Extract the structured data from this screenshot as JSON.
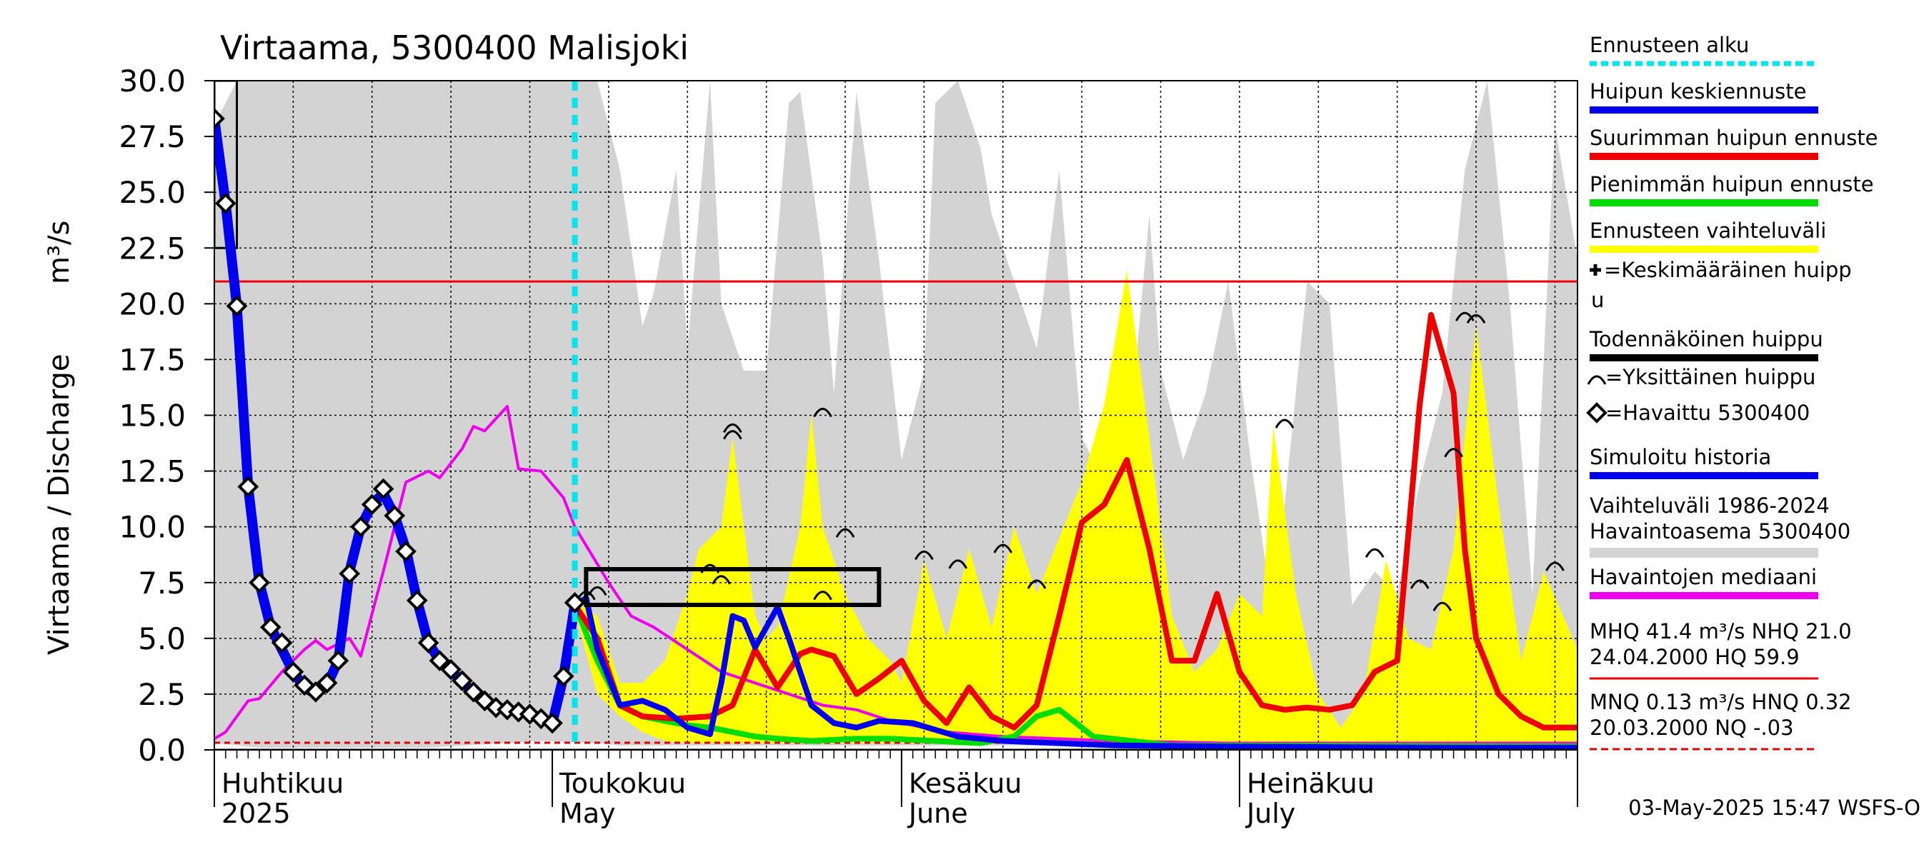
{
  "chart_data": {
    "type": "line",
    "title": "Virtaama, 5300400 Malisjoki",
    "ylabel": "Virtaama / Discharge",
    "yunit": "m³/s",
    "ylim": [
      0,
      30
    ],
    "yticks": [
      "0.0",
      "2.5",
      "5.0",
      "7.5",
      "10.0",
      "12.5",
      "15.0",
      "17.5",
      "20.0",
      "22.5",
      "25.0",
      "27.5",
      "30.0"
    ],
    "xlim": [
      "2025-04-01",
      "2025-07-31"
    ],
    "months": [
      {
        "fi": "Huhtikuu",
        "en": "2025",
        "start": "2025-04-01"
      },
      {
        "fi": "Toukokuu",
        "en": "May",
        "start": "2025-05-01"
      },
      {
        "fi": "Kesäkuu",
        "en": "June",
        "start": "2025-06-01"
      },
      {
        "fi": "Heinäkuu",
        "en": "July",
        "start": "2025-07-01"
      }
    ],
    "forecast_start": "2025-05-03",
    "hq_line": 21.0,
    "nq_line": 0.32,
    "range_1986_2024": {
      "x": [
        "2025-04-01",
        "2025-04-03",
        "2025-04-05",
        "2025-04-10",
        "2025-04-20",
        "2025-04-30",
        "2025-05-05",
        "2025-05-07",
        "2025-05-09",
        "2025-05-10",
        "2025-05-12",
        "2025-05-13",
        "2025-05-15",
        "2025-05-16",
        "2025-05-18",
        "2025-05-20",
        "2025-05-22",
        "2025-05-23",
        "2025-05-25",
        "2025-05-26",
        "2025-05-28",
        "2025-05-30",
        "2025-06-01",
        "2025-06-03",
        "2025-06-04",
        "2025-06-06",
        "2025-06-08",
        "2025-06-09",
        "2025-06-11",
        "2025-06-13",
        "2025-06-15",
        "2025-06-17",
        "2025-06-19",
        "2025-06-21",
        "2025-06-23",
        "2025-06-24",
        "2025-06-26",
        "2025-06-28",
        "2025-06-30",
        "2025-07-02",
        "2025-07-04",
        "2025-07-05",
        "2025-07-07",
        "2025-07-09",
        "2025-07-11",
        "2025-07-13",
        "2025-07-15",
        "2025-07-17",
        "2025-07-19",
        "2025-07-21",
        "2025-07-23",
        "2025-07-25",
        "2025-07-27",
        "2025-07-29",
        "2025-07-31"
      ],
      "upper": [
        28.0,
        30.0,
        30.0,
        30.0,
        30.0,
        30.0,
        30.0,
        26.0,
        19.0,
        20.5,
        26.0,
        18.0,
        30.0,
        20.0,
        17.0,
        17.0,
        29.0,
        29.5,
        22.0,
        16.0,
        29.5,
        22.0,
        13.0,
        17.0,
        29.0,
        30.0,
        27.0,
        24.0,
        21.0,
        18.0,
        26.0,
        14.0,
        12.0,
        13.0,
        24.0,
        17.0,
        13.0,
        16.0,
        21.0,
        13.0,
        6.0,
        11.0,
        21.0,
        20.0,
        6.5,
        8.0,
        7.0,
        12.0,
        16.0,
        26.0,
        30.0,
        20.0,
        7.0,
        28.0,
        22.0
      ],
      "lower": [
        0.3,
        0.2,
        0.1,
        0.1,
        0.1,
        0.4,
        0.3,
        0.2,
        0.2,
        0.2,
        0.2,
        0.2,
        0.2,
        0.2,
        0.2,
        0.2,
        0.2,
        0.2,
        0.2,
        0.2,
        0.2,
        0.2,
        0.2,
        0.2,
        0.2,
        0.2,
        0.2,
        0.2,
        0.2,
        0.2,
        0.2,
        0.2,
        0.2,
        0.2,
        0.2,
        0.2,
        0.2,
        0.2,
        0.2,
        0.2,
        0.2,
        0.2,
        0.2,
        0.2,
        0.2,
        0.2,
        0.2,
        0.2,
        0.2,
        0.2,
        0.2,
        0.2,
        0.2,
        0.2,
        0.2
      ]
    },
    "forecast_range": {
      "x": [
        "2025-05-03",
        "2025-05-05",
        "2025-05-07",
        "2025-05-09",
        "2025-05-11",
        "2025-05-13",
        "2025-05-14",
        "2025-05-16",
        "2025-05-17",
        "2025-05-19",
        "2025-05-20",
        "2025-05-21",
        "2025-05-23",
        "2025-05-24",
        "2025-05-25",
        "2025-05-27",
        "2025-05-29",
        "2025-05-31",
        "2025-06-01",
        "2025-06-03",
        "2025-06-05",
        "2025-06-07",
        "2025-06-09",
        "2025-06-11",
        "2025-06-13",
        "2025-06-15",
        "2025-06-17",
        "2025-06-19",
        "2025-06-21",
        "2025-06-23",
        "2025-06-25",
        "2025-06-27",
        "2025-06-29",
        "2025-07-01",
        "2025-07-03",
        "2025-07-04",
        "2025-07-06",
        "2025-07-08",
        "2025-07-10",
        "2025-07-12",
        "2025-07-14",
        "2025-07-16",
        "2025-07-18",
        "2025-07-20",
        "2025-07-22",
        "2025-07-24",
        "2025-07-26",
        "2025-07-28",
        "2025-07-31"
      ],
      "upper": [
        6.8,
        6.0,
        3.0,
        3.0,
        4.0,
        7.0,
        9.0,
        10.0,
        14.0,
        6.0,
        5.0,
        5.5,
        10.0,
        15.0,
        10.0,
        7.0,
        5.0,
        4.0,
        3.0,
        8.5,
        5.0,
        9.0,
        5.5,
        10.0,
        7.0,
        9.5,
        12.0,
        15.5,
        21.5,
        14.0,
        6.0,
        3.5,
        4.5,
        7.0,
        6.0,
        14.5,
        7.0,
        2.5,
        1.0,
        2.5,
        8.5,
        5.0,
        4.5,
        9.0,
        19.0,
        11.0,
        4.0,
        8.0,
        4.5
      ],
      "lower": [
        6.2,
        2.5,
        1.5,
        0.8,
        0.4,
        0.3,
        0.3,
        0.3,
        0.3,
        0.3,
        0.3,
        0.3,
        0.3,
        0.3,
        0.3,
        0.3,
        0.3,
        0.3,
        0.3,
        0.3,
        0.3,
        0.3,
        0.3,
        0.3,
        0.3,
        0.3,
        0.3,
        0.3,
        0.3,
        0.3,
        0.3,
        0.3,
        0.3,
        0.3,
        0.3,
        0.3,
        0.3,
        0.3,
        0.3,
        0.3,
        0.3,
        0.3,
        0.3,
        0.3,
        0.3,
        0.3,
        0.3,
        0.3,
        0.3
      ]
    },
    "series": [
      {
        "name": "Havaintojen mediaani",
        "color": "#ee00ee",
        "width": 4,
        "x": [
          "2025-04-01",
          "2025-04-02",
          "2025-04-04",
          "2025-04-05",
          "2025-04-07",
          "2025-04-09",
          "2025-04-10",
          "2025-04-11",
          "2025-04-13",
          "2025-04-14",
          "2025-04-16",
          "2025-04-18",
          "2025-04-20",
          "2025-04-21",
          "2025-04-23",
          "2025-04-24",
          "2025-04-25",
          "2025-04-27",
          "2025-04-28",
          "2025-04-30",
          "2025-05-02",
          "2025-05-03",
          "2025-05-06",
          "2025-05-08",
          "2025-05-10",
          "2025-05-13",
          "2025-05-16",
          "2025-05-19",
          "2025-05-22",
          "2025-05-25",
          "2025-05-28",
          "2025-05-31",
          "2025-06-05",
          "2025-06-10",
          "2025-06-20",
          "2025-06-30",
          "2025-07-10",
          "2025-07-20",
          "2025-07-31"
        ],
        "y": [
          0.5,
          0.8,
          2.2,
          2.3,
          3.5,
          4.5,
          4.9,
          4.5,
          5.0,
          4.2,
          8.0,
          12.0,
          12.5,
          12.2,
          13.5,
          14.5,
          14.3,
          15.4,
          12.6,
          12.5,
          11.3,
          10.0,
          7.5,
          6.0,
          5.5,
          4.5,
          3.5,
          3.0,
          2.5,
          2.0,
          1.8,
          1.3,
          0.8,
          0.6,
          0.4,
          0.3,
          0.3,
          0.3,
          0.3
        ]
      },
      {
        "name": "Pienimmän huipun ennuste",
        "color": "#00dd00",
        "width": 8,
        "x": [
          "2025-05-03",
          "2025-05-05",
          "2025-05-07",
          "2025-05-09",
          "2025-05-11",
          "2025-05-13",
          "2025-05-15",
          "2025-05-17",
          "2025-05-19",
          "2025-05-21",
          "2025-05-24",
          "2025-05-28",
          "2025-05-31",
          "2025-06-04",
          "2025-06-08",
          "2025-06-11",
          "2025-06-13",
          "2025-06-15",
          "2025-06-18",
          "2025-06-25",
          "2025-07-31"
        ],
        "y": [
          6.5,
          4.0,
          2.0,
          1.5,
          1.3,
          1.1,
          1.0,
          0.8,
          0.6,
          0.5,
          0.4,
          0.5,
          0.5,
          0.4,
          0.3,
          0.6,
          1.5,
          1.8,
          0.6,
          0.2,
          0.15
        ]
      },
      {
        "name": "Suurimman huipun ennuste",
        "color": "#ee0000",
        "width": 8,
        "x": [
          "2025-05-03",
          "2025-05-05",
          "2025-05-07",
          "2025-05-09",
          "2025-05-12",
          "2025-05-15",
          "2025-05-17",
          "2025-05-19",
          "2025-05-21",
          "2025-05-23",
          "2025-05-24",
          "2025-05-26",
          "2025-05-28",
          "2025-05-30",
          "2025-06-01",
          "2025-06-03",
          "2025-06-05",
          "2025-06-07",
          "2025-06-09",
          "2025-06-11",
          "2025-06-13",
          "2025-06-15",
          "2025-06-17",
          "2025-06-19",
          "2025-06-21",
          "2025-06-23",
          "2025-06-25",
          "2025-06-27",
          "2025-06-29",
          "2025-07-01",
          "2025-07-03",
          "2025-07-05",
          "2025-07-07",
          "2025-07-09",
          "2025-07-11",
          "2025-07-13",
          "2025-07-15",
          "2025-07-17",
          "2025-07-18",
          "2025-07-20",
          "2025-07-21",
          "2025-07-22",
          "2025-07-24",
          "2025-07-26",
          "2025-07-28",
          "2025-07-31"
        ],
        "y": [
          6.5,
          5.0,
          2.0,
          1.5,
          1.4,
          1.5,
          2.0,
          4.5,
          2.8,
          4.3,
          4.5,
          4.2,
          2.5,
          3.2,
          4.0,
          2.2,
          1.2,
          2.8,
          1.5,
          1.0,
          2.0,
          6.0,
          10.2,
          11.0,
          13.0,
          9.0,
          4.0,
          4.0,
          7.0,
          3.5,
          2.0,
          1.8,
          1.9,
          1.8,
          2.0,
          3.5,
          4.0,
          15.5,
          19.5,
          16.0,
          9.0,
          5.0,
          2.5,
          1.5,
          1.0,
          1.0
        ]
      },
      {
        "name": "Huipun keskiennuste",
        "color": "#0000ee",
        "width": 8,
        "x": [
          "2025-05-03",
          "2025-05-04",
          "2025-05-05",
          "2025-05-07",
          "2025-05-09",
          "2025-05-11",
          "2025-05-13",
          "2025-05-15",
          "2025-05-16",
          "2025-05-17",
          "2025-05-18",
          "2025-05-19",
          "2025-05-20",
          "2025-05-21",
          "2025-05-22",
          "2025-05-24",
          "2025-05-26",
          "2025-05-28",
          "2025-05-30",
          "2025-06-02",
          "2025-06-06",
          "2025-06-10",
          "2025-06-15",
          "2025-06-20",
          "2025-06-30",
          "2025-07-10",
          "2025-07-20",
          "2025-07-31"
        ],
        "y": [
          6.5,
          6.8,
          4.5,
          2.0,
          2.2,
          1.8,
          1.0,
          0.7,
          3.0,
          6.0,
          5.8,
          4.6,
          5.5,
          6.4,
          5.0,
          2.0,
          1.2,
          1.0,
          1.3,
          1.2,
          0.6,
          0.4,
          0.3,
          0.2,
          0.15,
          0.12,
          0.1,
          0.1
        ]
      },
      {
        "name": "Simuloitu historia",
        "color": "#0000ee",
        "width": 14,
        "x": [
          "2025-04-01",
          "2025-04-02",
          "2025-04-03",
          "2025-04-04",
          "2025-04-05",
          "2025-04-06",
          "2025-04-07",
          "2025-04-08",
          "2025-04-09",
          "2025-04-10",
          "2025-04-11",
          "2025-04-12",
          "2025-04-13",
          "2025-04-14",
          "2025-04-15",
          "2025-04-16",
          "2025-04-17",
          "2025-04-18",
          "2025-04-19",
          "2025-04-20",
          "2025-04-21",
          "2025-04-22",
          "2025-04-23",
          "2025-04-24",
          "2025-04-25",
          "2025-04-26",
          "2025-04-27",
          "2025-04-28",
          "2025-04-29",
          "2025-04-30",
          "2025-05-01",
          "2025-05-02",
          "2025-05-03"
        ],
        "y": [
          28.3,
          24.5,
          19.9,
          11.8,
          7.5,
          5.5,
          4.5,
          3.5,
          2.8,
          2.5,
          2.9,
          4.0,
          8.0,
          10.0,
          11.0,
          11.5,
          10.5,
          9.0,
          6.7,
          4.8,
          4.0,
          3.6,
          3.0,
          2.6,
          2.2,
          1.9,
          1.8,
          1.7,
          1.6,
          1.4,
          1.2,
          3.3,
          6.5
        ]
      },
      {
        "name": "Todennäköinen huippu",
        "color": "#000000",
        "width": 3,
        "x": [
          "2025-04-01",
          "2025-05-03",
          "2025-07-31"
        ],
        "y": [
          0.0,
          0.0,
          0.0
        ]
      }
    ],
    "observed": {
      "name": "Havaittu 5300400",
      "x": [
        "2025-04-01",
        "2025-04-02",
        "2025-04-03",
        "2025-04-04",
        "2025-04-05",
        "2025-04-06",
        "2025-04-07",
        "2025-04-08",
        "2025-04-09",
        "2025-04-10",
        "2025-04-11",
        "2025-04-12",
        "2025-04-13",
        "2025-04-14",
        "2025-04-15",
        "2025-04-16",
        "2025-04-17",
        "2025-04-18",
        "2025-04-19",
        "2025-04-20",
        "2025-04-21",
        "2025-04-22",
        "2025-04-23",
        "2025-04-24",
        "2025-04-25",
        "2025-04-26",
        "2025-04-27",
        "2025-04-28",
        "2025-04-29",
        "2025-04-30",
        "2025-05-01",
        "2025-05-02",
        "2025-05-03"
      ],
      "y": [
        28.3,
        24.5,
        19.9,
        11.8,
        7.5,
        5.5,
        4.8,
        3.5,
        2.9,
        2.6,
        3.0,
        4.0,
        7.9,
        10.0,
        11.0,
        11.7,
        10.5,
        8.9,
        6.7,
        4.8,
        4.0,
        3.6,
        3.1,
        2.6,
        2.2,
        1.9,
        1.8,
        1.7,
        1.6,
        1.4,
        1.2,
        3.3,
        6.6
      ]
    },
    "single_peaks": {
      "x": [
        "2025-05-17",
        "2025-05-17",
        "2025-05-15",
        "2025-05-16",
        "2025-05-25",
        "2025-05-25",
        "2025-05-27",
        "2025-06-03",
        "2025-06-06",
        "2025-06-10",
        "2025-06-13",
        "2025-07-05",
        "2025-07-13",
        "2025-07-17",
        "2025-07-19",
        "2025-07-20",
        "2025-07-21",
        "2025-07-22",
        "2025-07-29"
      ],
      "y": [
        14.3,
        14.0,
        8.0,
        7.5,
        15.0,
        6.8,
        9.6,
        8.6,
        8.2,
        8.9,
        7.3,
        14.5,
        8.7,
        7.3,
        6.3,
        13.2,
        19.3,
        19.2,
        8.1
      ]
    },
    "obs_peaks": {
      "x": [
        "2025-05-04",
        "2025-05-05"
      ],
      "y": [
        6.8,
        7.0
      ]
    },
    "mean_peak_box": {
      "x": [
        "2025-05-04",
        "2025-05-30"
      ],
      "y": [
        6.5,
        8.1
      ]
    },
    "initial_box": {
      "x": [
        "2025-04-01",
        "2025-04-03"
      ],
      "y": [
        22.5,
        30.0
      ]
    },
    "legend": [
      {
        "label": "Ennusteen alku",
        "kind": "dashed",
        "color": "#00e5ee"
      },
      {
        "label": "Huipun keskiennuste",
        "kind": "line",
        "color": "#0000ee"
      },
      {
        "label": "Suurimman huipun ennuste",
        "kind": "line",
        "color": "#ee0000"
      },
      {
        "label": "Pienimmän huipun ennuste",
        "kind": "line",
        "color": "#00dd00"
      },
      {
        "label": "Ennusteen vaihteluväli",
        "kind": "line",
        "color": "#ffff00"
      },
      {
        "label": "=Keskimääräinen huipp",
        "label2": "u",
        "kind": "plus"
      },
      {
        "label": "Todennäköinen huippu",
        "kind": "line",
        "color": "#000000"
      },
      {
        "label": "=Yksittäinen huippu",
        "kind": "arc"
      },
      {
        "label": "=Havaittu 5300400",
        "kind": "diamond"
      },
      {
        "label": "Simuloitu historia",
        "kind": "line",
        "color": "#0000ee"
      },
      {
        "label": "Vaihteluväli 1986-2024",
        "label2": " Havaintoasema 5300400",
        "kind": "line",
        "color": "#d3d3d3"
      },
      {
        "label": "Havaintojen mediaani",
        "kind": "line",
        "color": "#ee00ee"
      },
      {
        "label": "MHQ 41.4 m³/s NHQ 21.0",
        "label2": "24.04.2000 HQ 59.9",
        "kind": "line",
        "color": "#ee0000"
      },
      {
        "label": "MNQ 0.13 m³/s HNQ 0.32",
        "label2": "20.03.2000 NQ -.03",
        "kind": "dashed",
        "color": "#dd0000"
      }
    ],
    "footer": "03-May-2025 15:47 WSFS-O"
  }
}
